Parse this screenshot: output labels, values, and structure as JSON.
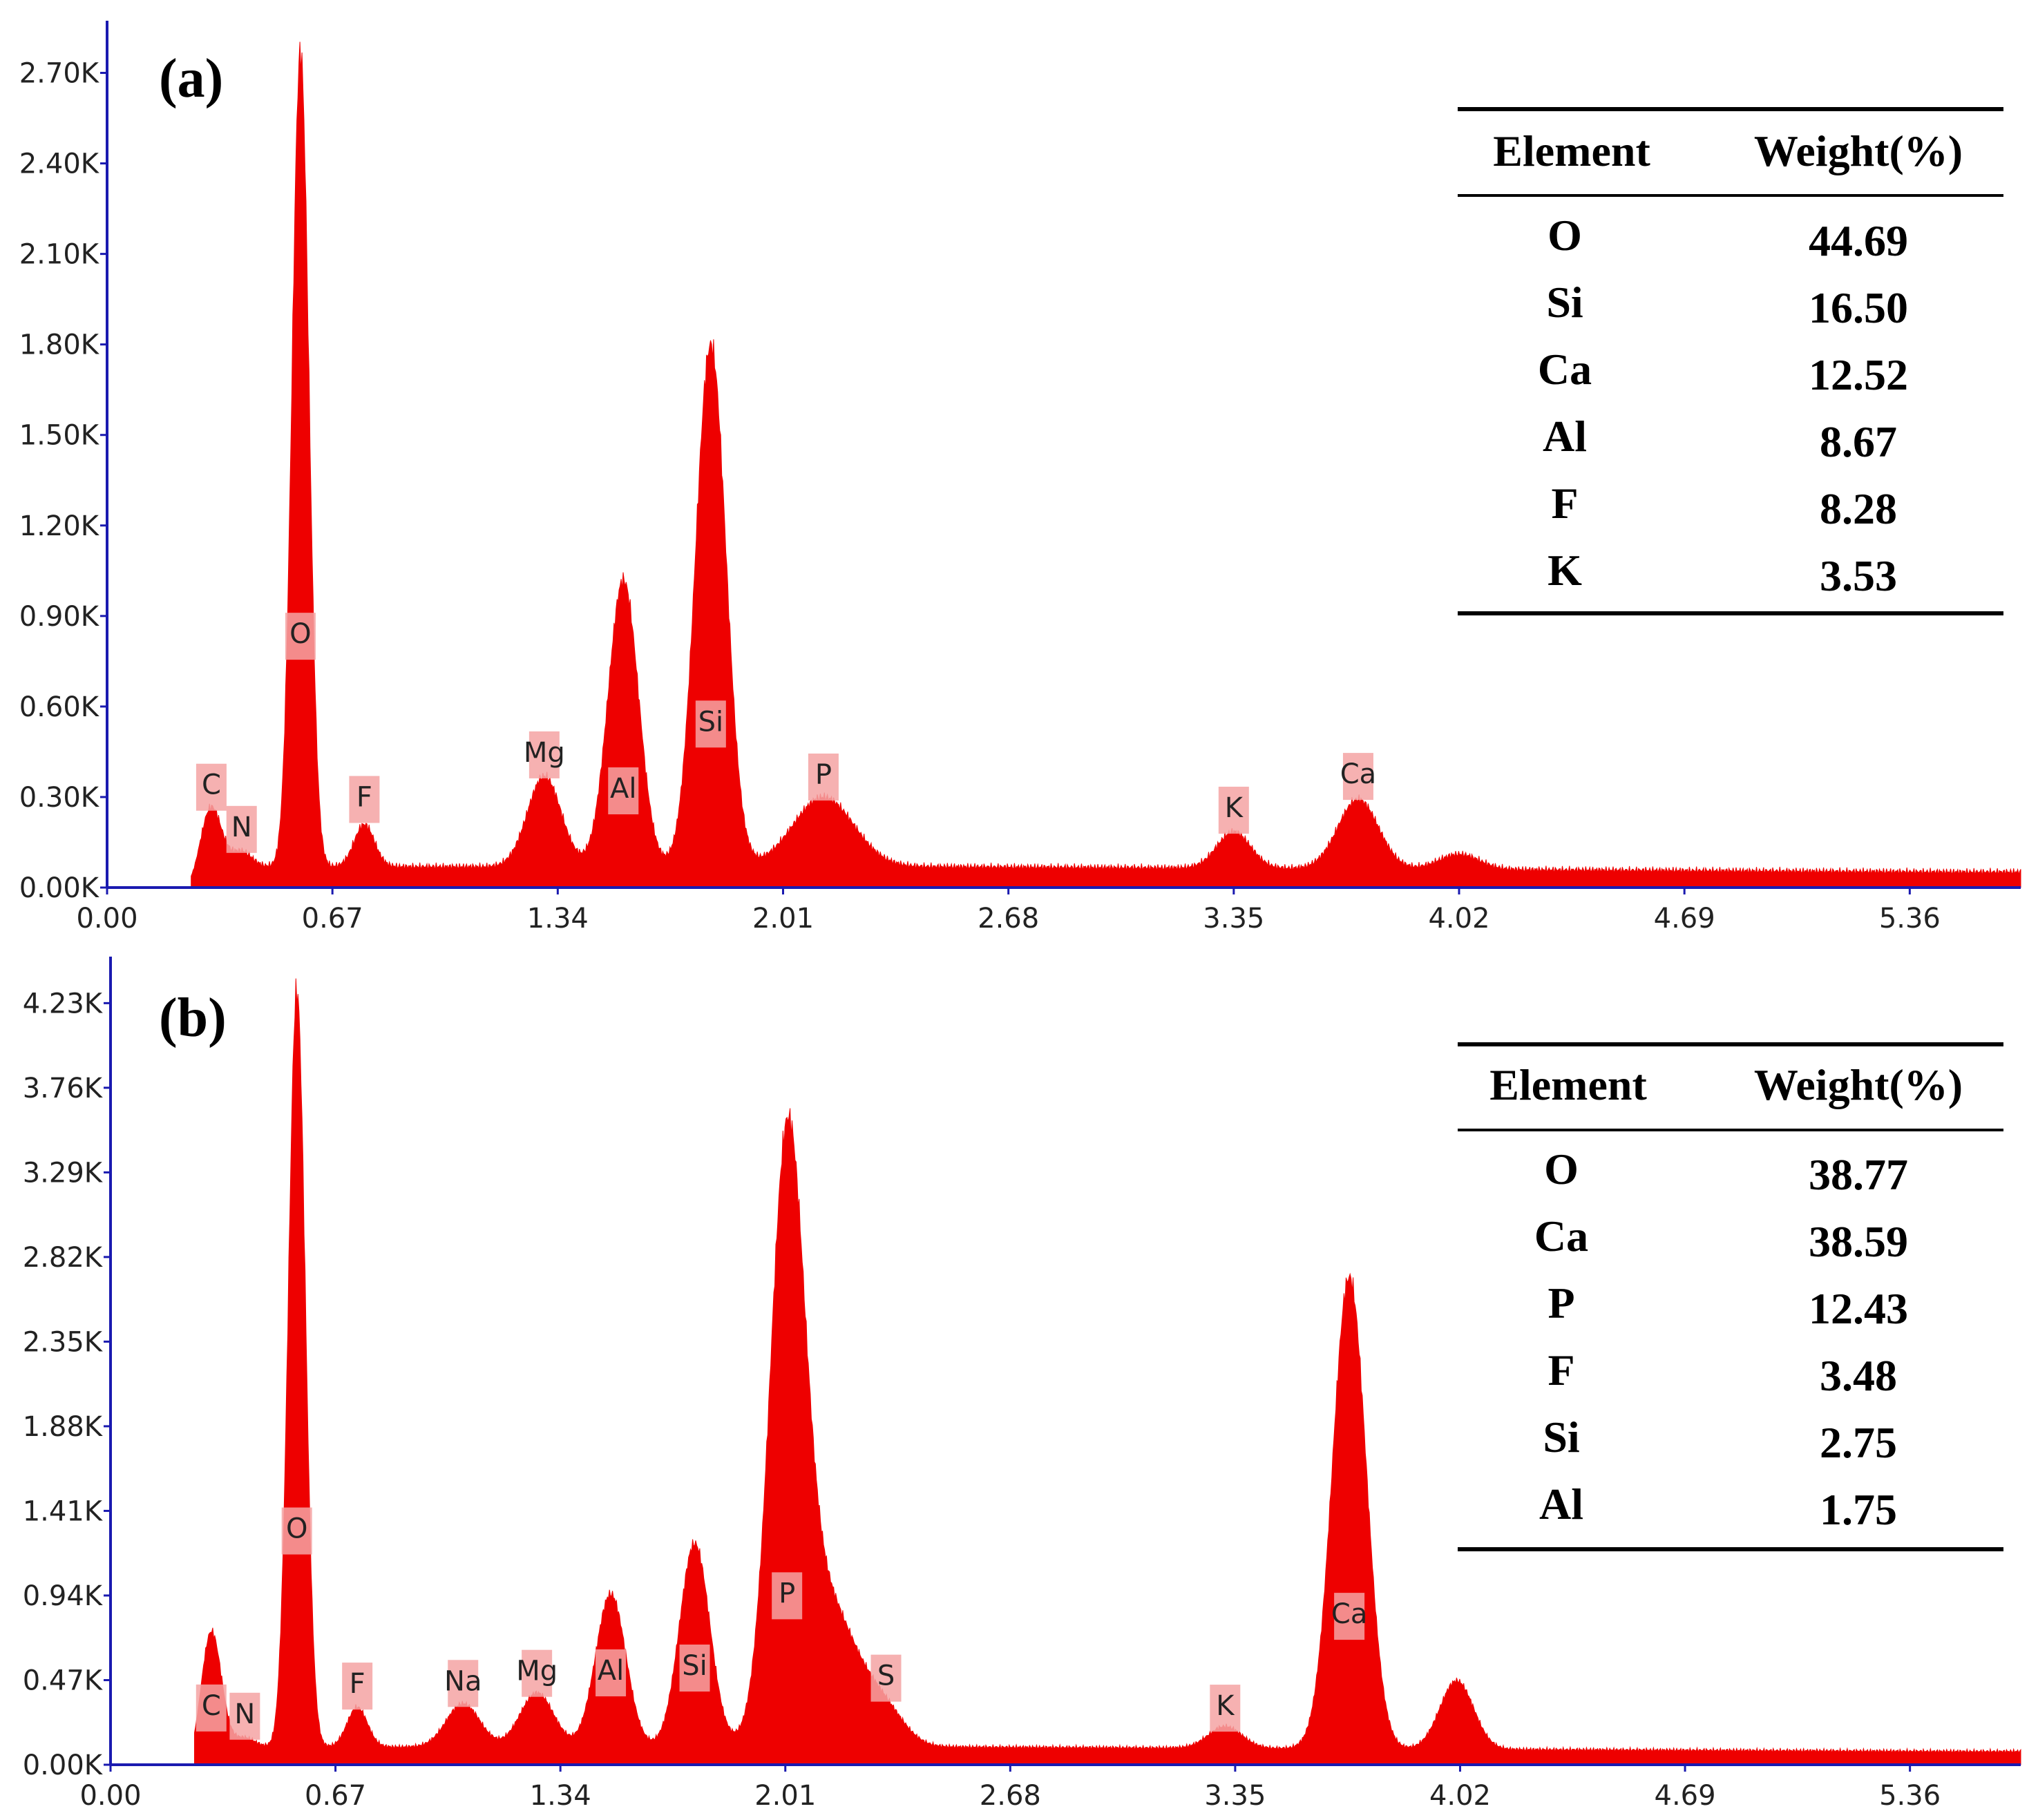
{
  "chart_data": [
    {
      "type": "area",
      "panel_label": "(a)",
      "xlabel": "",
      "ylabel": "",
      "xlim": [
        0,
        5.69
      ],
      "ylim": [
        0,
        2.85
      ],
      "x_ticks": [
        "0.00",
        "0.67",
        "1.34",
        "2.01",
        "2.68",
        "3.35",
        "4.02",
        "4.69",
        "5.36"
      ],
      "x_tick_values": [
        0,
        0.67,
        1.34,
        2.01,
        2.68,
        3.35,
        4.02,
        4.69,
        5.36
      ],
      "y_ticks": [
        "0.00K",
        "0.30K",
        "0.60K",
        "0.90K",
        "1.20K",
        "1.50K",
        "1.80K",
        "2.10K",
        "2.40K",
        "2.70K"
      ],
      "y_tick_values": [
        0,
        0.3,
        0.6,
        0.9,
        1.2,
        1.5,
        1.8,
        2.1,
        2.4,
        2.7
      ],
      "baseline": 0.07,
      "peaks": [
        {
          "label": "C",
          "energy": 0.31,
          "height": 0.2,
          "width": 0.03
        },
        {
          "label": "N",
          "energy": 0.4,
          "height": 0.05,
          "width": 0.03
        },
        {
          "label": "O",
          "energy": 0.575,
          "height": 2.7,
          "width": 0.025
        },
        {
          "label": "F",
          "energy": 0.765,
          "height": 0.14,
          "width": 0.03
        },
        {
          "label": "Mg",
          "energy": 1.3,
          "height": 0.3,
          "width": 0.05
        },
        {
          "label": "Al",
          "energy": 1.535,
          "height": 0.95,
          "width": 0.045
        },
        {
          "label": "Si",
          "energy": 1.795,
          "height": 1.73,
          "width": 0.045
        },
        {
          "label": "P",
          "energy": 2.13,
          "height": 0.23,
          "width": 0.09
        },
        {
          "label": "K",
          "energy": 3.35,
          "height": 0.12,
          "width": 0.05
        },
        {
          "label": "Ca",
          "energy": 3.72,
          "height": 0.23,
          "width": 0.06
        }
      ],
      "extra_bumps": [
        {
          "energy": 4.02,
          "height": 0.05,
          "width": 0.06
        }
      ],
      "table": {
        "headers": [
          "Element",
          "Weight(%)"
        ],
        "rows": [
          [
            "O",
            "44.69"
          ],
          [
            "Si",
            "16.50"
          ],
          [
            "Ca",
            "12.52"
          ],
          [
            "Al",
            "8.67"
          ],
          [
            "F",
            "8.28"
          ],
          [
            "K",
            "3.53"
          ]
        ]
      }
    },
    {
      "type": "area",
      "panel_label": "(b)",
      "xlabel": "",
      "ylabel": "",
      "xlim": [
        0,
        5.69
      ],
      "ylim": [
        0,
        4.45
      ],
      "x_ticks": [
        "0.00",
        "0.67",
        "1.34",
        "2.01",
        "2.68",
        "3.35",
        "4.02",
        "4.69",
        "5.36"
      ],
      "x_tick_values": [
        0,
        0.67,
        1.34,
        2.01,
        2.68,
        3.35,
        4.02,
        4.69,
        5.36
      ],
      "y_ticks": [
        "0.00K",
        "0.47K",
        "0.94K",
        "1.41K",
        "1.88K",
        "2.35K",
        "2.82K",
        "3.29K",
        "3.76K",
        "4.23K"
      ],
      "y_tick_values": [
        0,
        0.47,
        0.94,
        1.41,
        1.88,
        2.35,
        2.82,
        3.29,
        3.76,
        4.23
      ],
      "baseline": 0.1,
      "peaks": [
        {
          "label": "C",
          "energy": 0.3,
          "height": 0.65,
          "width": 0.03
        },
        {
          "label": "N",
          "energy": 0.4,
          "height": 0.05,
          "width": 0.03
        },
        {
          "label": "O",
          "energy": 0.555,
          "height": 4.2,
          "width": 0.025
        },
        {
          "label": "F",
          "energy": 0.735,
          "height": 0.22,
          "width": 0.03
        },
        {
          "label": "Na",
          "energy": 1.05,
          "height": 0.24,
          "width": 0.05
        },
        {
          "label": "Mg",
          "energy": 1.27,
          "height": 0.3,
          "width": 0.05
        },
        {
          "label": "Al",
          "energy": 1.49,
          "height": 0.85,
          "width": 0.045
        },
        {
          "label": "Si",
          "energy": 1.74,
          "height": 1.13,
          "width": 0.045
        },
        {
          "label": "P",
          "energy": 2.015,
          "height": 3.0,
          "width": 0.05
        },
        {
          "label": "S",
          "energy": 2.31,
          "height": 0.14,
          "width": 0.06
        },
        {
          "label": "K",
          "energy": 3.32,
          "height": 0.12,
          "width": 0.05
        },
        {
          "label": "Ca",
          "energy": 3.69,
          "height": 2.62,
          "width": 0.05
        }
      ],
      "extra_bumps": [
        {
          "energy": 2.12,
          "height": 0.85,
          "width": 0.1
        },
        {
          "energy": 4.01,
          "height": 0.38,
          "width": 0.05
        }
      ],
      "table": {
        "headers": [
          "Element",
          "Weight(%)"
        ],
        "rows": [
          [
            "O",
            "38.77"
          ],
          [
            "Ca",
            "38.59"
          ],
          [
            "P",
            "12.43"
          ],
          [
            "F",
            "3.48"
          ],
          [
            "Si",
            "2.75"
          ],
          [
            "Al",
            "1.75"
          ]
        ]
      }
    }
  ],
  "colors": {
    "spectrum": "#ee0000",
    "axis": "#1a1ab0",
    "label_box": "#f4a3a3"
  }
}
